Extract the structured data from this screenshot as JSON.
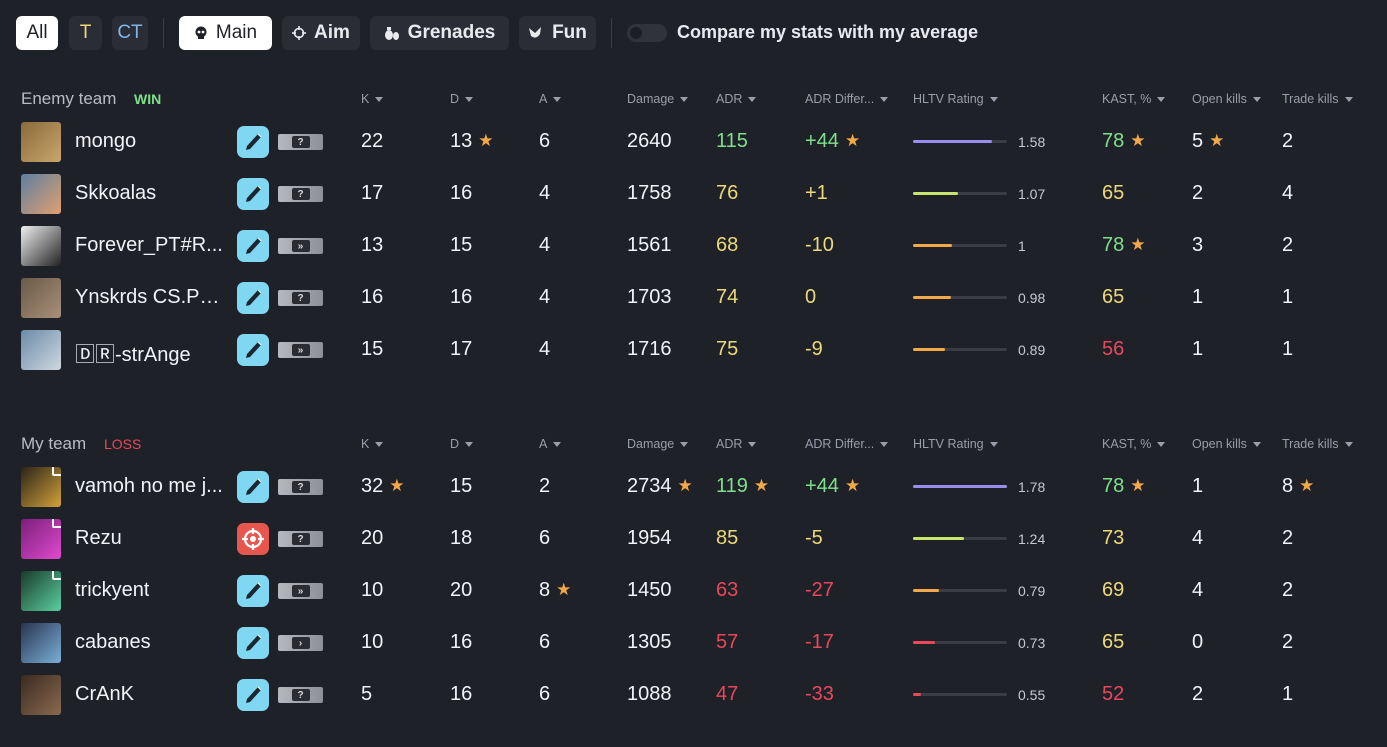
{
  "filters": {
    "side_all": "All",
    "side_t": "T",
    "side_ct": "CT",
    "main": "Main",
    "aim": "Aim",
    "grenades": "Grenades",
    "fun": "Fun",
    "compare_label": "Compare my stats with my average"
  },
  "columns": {
    "k": "K",
    "d": "D",
    "a": "A",
    "damage": "Damage",
    "adr": "ADR",
    "adr_diff": "ADR Differ...",
    "hltv": "HLTV Rating",
    "kast": "KAST, %",
    "open_kills": "Open kills",
    "trade_kills": "Trade kills"
  },
  "colors": {
    "green": "#7ee08b",
    "yellow": "#ecd97a",
    "red": "#e8485a",
    "orange": "#f3a94a",
    "purple": "#9b8cf0",
    "lime": "#c7e56a",
    "role_blue": "#7fd7f2",
    "role_red": "#e8574f"
  },
  "enemy": {
    "title": "Enemy team",
    "result": "WIN",
    "players": [
      {
        "name": "mongo",
        "role": "knife-icon",
        "rank": "?",
        "k": "22",
        "d": "13",
        "d_star": true,
        "a": "6",
        "damage": "2640",
        "adr": "115",
        "adr_c": "green",
        "diff": "+44",
        "diff_c": "green",
        "diff_star": true,
        "rating": "1.58",
        "rating_fill": 0.84,
        "bar_c": "purple",
        "kast": "78",
        "kast_c": "green",
        "kast_star": true,
        "open": "5",
        "open_star": true,
        "trade": "2"
      },
      {
        "name": "Skkoalas",
        "role": "knife-icon",
        "rank": "?",
        "k": "17",
        "d": "16",
        "a": "4",
        "damage": "1758",
        "adr": "76",
        "adr_c": "yellow",
        "diff": "+1",
        "diff_c": "yellow",
        "rating": "1.07",
        "rating_fill": 0.48,
        "bar_c": "lime",
        "kast": "65",
        "kast_c": "yellow",
        "open": "2",
        "trade": "4"
      },
      {
        "name": "Forever_PT#R...",
        "role": "knife-icon",
        "rank": "»",
        "k": "13",
        "d": "15",
        "a": "4",
        "damage": "1561",
        "adr": "68",
        "adr_c": "yellow",
        "diff": "-10",
        "diff_c": "yellow",
        "rating": "1",
        "rating_fill": 0.42,
        "bar_c": "orange",
        "kast": "78",
        "kast_c": "green",
        "kast_star": true,
        "open": "3",
        "trade": "2"
      },
      {
        "name": "Ynskrds CS.PRO",
        "role": "knife-icon",
        "rank": "?",
        "k": "16",
        "d": "16",
        "a": "4",
        "damage": "1703",
        "adr": "74",
        "adr_c": "yellow",
        "diff": "0",
        "diff_c": "yellow",
        "rating": "0.98",
        "rating_fill": 0.4,
        "bar_c": "orange",
        "kast": "65",
        "kast_c": "yellow",
        "open": "1",
        "trade": "1"
      },
      {
        "name": "🄳🅁-strAnge",
        "role": "knife-icon",
        "rank": "»",
        "k": "15",
        "d": "17",
        "a": "4",
        "damage": "1716",
        "adr": "75",
        "adr_c": "yellow",
        "diff": "-9",
        "diff_c": "yellow",
        "rating": "0.89",
        "rating_fill": 0.34,
        "bar_c": "orange",
        "kast": "56",
        "kast_c": "red",
        "open": "1",
        "trade": "1"
      }
    ]
  },
  "mine": {
    "title": "My team",
    "result": "LOSS",
    "players": [
      {
        "name": "vamoh no me j...",
        "role": "knife-icon",
        "rank": "?",
        "k": "32",
        "k_star": true,
        "d": "15",
        "a": "2",
        "damage": "2734",
        "damage_star": true,
        "adr": "119",
        "adr_c": "green",
        "adr_star": true,
        "diff": "+44",
        "diff_c": "green",
        "diff_star": true,
        "rating": "1.78",
        "rating_fill": 1.0,
        "bar_c": "purple",
        "kast": "78",
        "kast_c": "green",
        "kast_star": true,
        "open": "1",
        "trade": "8",
        "trade_star": true,
        "party": true
      },
      {
        "name": "Rezu",
        "role": "crosshair-icon",
        "rank": "?",
        "k": "20",
        "d": "18",
        "a": "6",
        "damage": "1954",
        "adr": "85",
        "adr_c": "yellow",
        "diff": "-5",
        "diff_c": "yellow",
        "rating": "1.24",
        "rating_fill": 0.54,
        "bar_c": "lime",
        "kast": "73",
        "kast_c": "yellow",
        "open": "4",
        "trade": "2",
        "party": true
      },
      {
        "name": "trickyent",
        "role": "knife-icon",
        "rank": "»",
        "k": "10",
        "d": "20",
        "a": "8",
        "a_star": true,
        "damage": "1450",
        "adr": "63",
        "adr_c": "red",
        "diff": "-27",
        "diff_c": "red",
        "rating": "0.79",
        "rating_fill": 0.28,
        "bar_c": "orange",
        "kast": "69",
        "kast_c": "yellow",
        "open": "4",
        "trade": "2",
        "party": true
      },
      {
        "name": "cabanes",
        "role": "knife-icon",
        "rank": "›",
        "k": "10",
        "d": "16",
        "a": "6",
        "damage": "1305",
        "adr": "57",
        "adr_c": "red",
        "diff": "-17",
        "diff_c": "red",
        "rating": "0.73",
        "rating_fill": 0.23,
        "bar_c": "red",
        "kast": "65",
        "kast_c": "yellow",
        "open": "0",
        "trade": "2"
      },
      {
        "name": "CrAnK",
        "role": "knife-icon",
        "rank": "?",
        "k": "5",
        "d": "16",
        "a": "6",
        "damage": "1088",
        "adr": "47",
        "adr_c": "red",
        "diff": "-33",
        "diff_c": "red",
        "rating": "0.55",
        "rating_fill": 0.09,
        "bar_c": "red",
        "kast": "52",
        "kast_c": "red",
        "open": "2",
        "trade": "1"
      }
    ]
  }
}
